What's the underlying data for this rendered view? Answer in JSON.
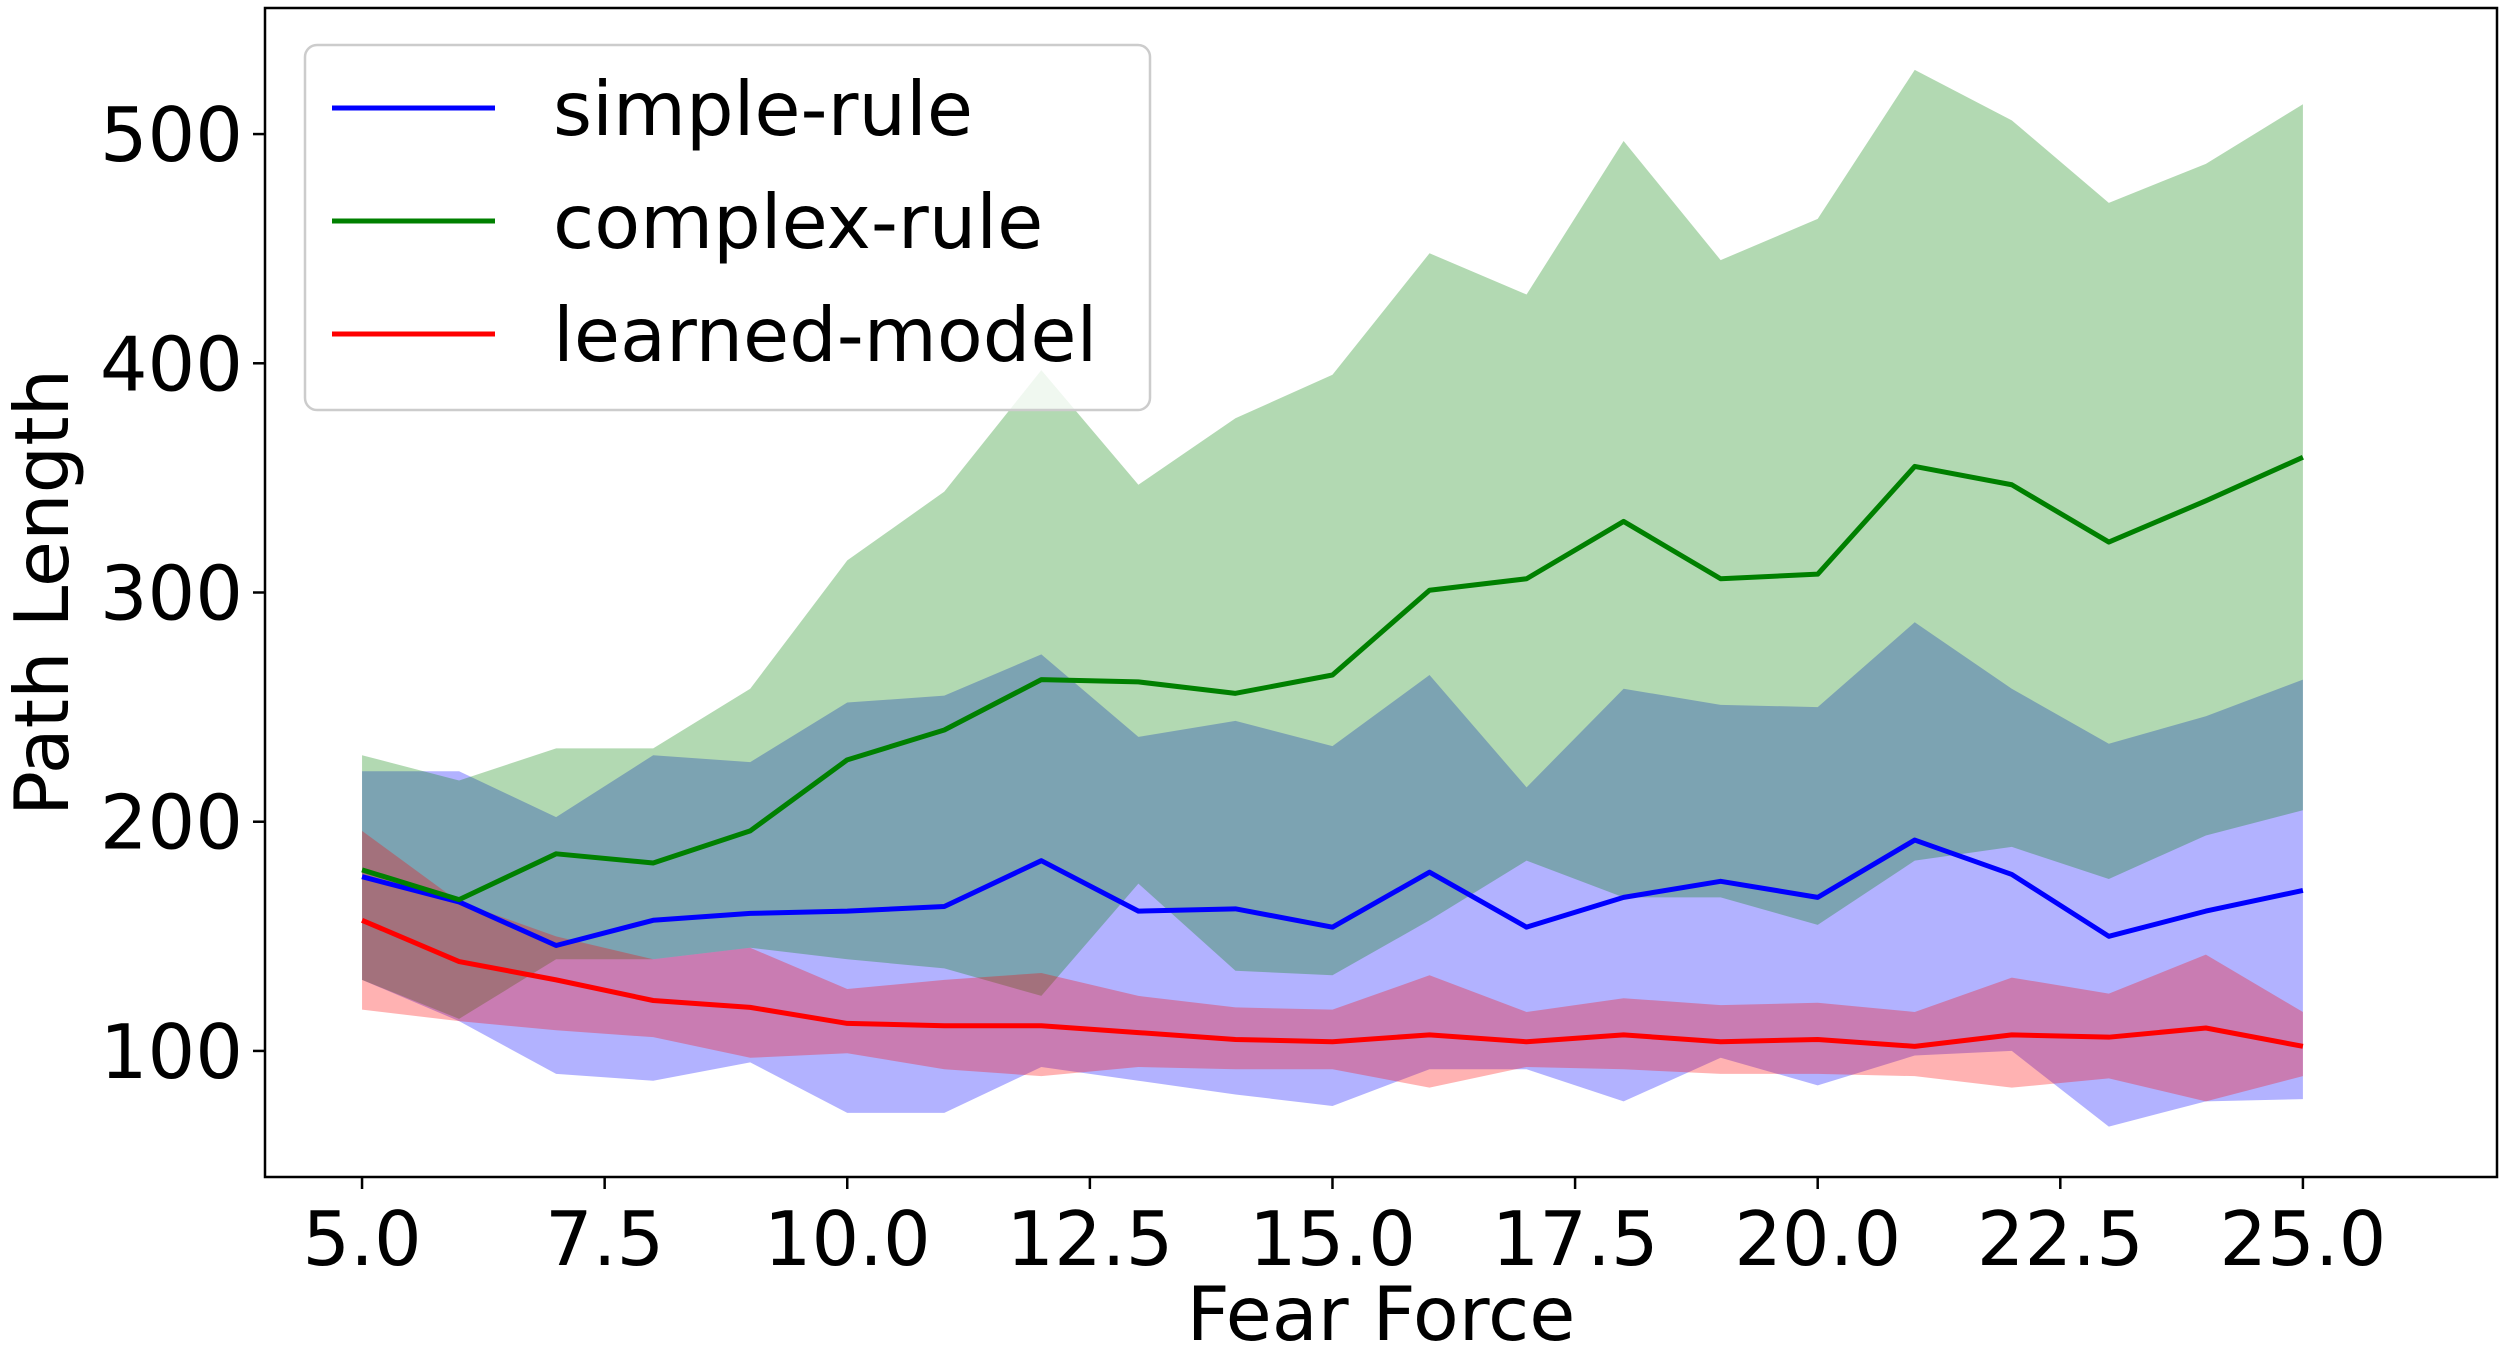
{
  "chart_data": {
    "type": "line",
    "xlabel": "Fear Force",
    "ylabel": "Path Length",
    "xlim": [
      4.0,
      27.0
    ],
    "ylim": [
      45,
      555
    ],
    "xticks": [
      5.0,
      7.5,
      10.0,
      12.5,
      15.0,
      17.5,
      20.0,
      22.5,
      25.0
    ],
    "xtick_labels": [
      "5.0",
      "7.5",
      "10.0",
      "12.5",
      "15.0",
      "17.5",
      "20.0",
      "22.5",
      "25.0"
    ],
    "yticks": [
      100,
      200,
      300,
      400,
      500
    ],
    "ytick_labels": [
      "100",
      "200",
      "300",
      "400",
      "500"
    ],
    "grid": false,
    "legend_position": "top-left",
    "x": [
      5,
      6,
      7,
      8,
      9,
      10,
      11,
      12,
      13,
      14,
      15,
      16,
      17,
      18,
      19,
      20,
      21,
      22,
      23,
      24,
      25
    ],
    "series": [
      {
        "name": "simple-rule",
        "color": "#0000ff",
        "fill_color": "#0000ff",
        "fill_opacity": 0.3,
        "values": [
          176,
          165,
          146,
          157,
          160,
          161,
          163,
          183,
          161,
          162,
          154,
          178,
          154,
          167,
          174,
          167,
          192,
          177,
          150,
          161,
          170
        ],
        "lower": [
          131,
          113,
          90,
          87,
          95,
          73,
          73,
          93,
          87,
          81,
          76,
          92,
          92,
          78,
          97,
          85,
          98,
          100,
          67,
          78,
          79
        ],
        "upper": [
          222,
          222,
          202,
          229,
          226,
          252,
          255,
          273,
          237,
          244,
          233,
          264,
          215,
          258,
          251,
          250,
          287,
          258,
          234,
          246,
          262
        ]
      },
      {
        "name": "complex-rule",
        "color": "#008000",
        "fill_color": "#008000",
        "fill_opacity": 0.3,
        "values": [
          179,
          166,
          186,
          182,
          196,
          227,
          240,
          262,
          261,
          256,
          264,
          301,
          306,
          331,
          306,
          308,
          355,
          347,
          322,
          340,
          359
        ],
        "lower": [
          131,
          114,
          140,
          140,
          145,
          140,
          136,
          124,
          173,
          135,
          133,
          157,
          183,
          167,
          167,
          155,
          183,
          189,
          175,
          194,
          205
        ],
        "upper": [
          229,
          218,
          232,
          232,
          258,
          314,
          344,
          397,
          347,
          376,
          395,
          448,
          430,
          497,
          445,
          463,
          528,
          506,
          470,
          487,
          513
        ]
      },
      {
        "name": "learned-model",
        "color": "#ff0000",
        "fill_color": "#ff0000",
        "fill_opacity": 0.3,
        "values": [
          157,
          139,
          131,
          122,
          119,
          112,
          111,
          111,
          108,
          105,
          104,
          107,
          104,
          107,
          104,
          105,
          102,
          107,
          106,
          110,
          102
        ],
        "lower": [
          118,
          113,
          109,
          106,
          97,
          99,
          92,
          89,
          93,
          92,
          92,
          84,
          93,
          92,
          90,
          90,
          89,
          84,
          88,
          78,
          89
        ],
        "upper": [
          196,
          165,
          150,
          140,
          145,
          127,
          131,
          134,
          124,
          119,
          118,
          133,
          117,
          123,
          120,
          121,
          117,
          132,
          125,
          142,
          117
        ]
      }
    ]
  }
}
